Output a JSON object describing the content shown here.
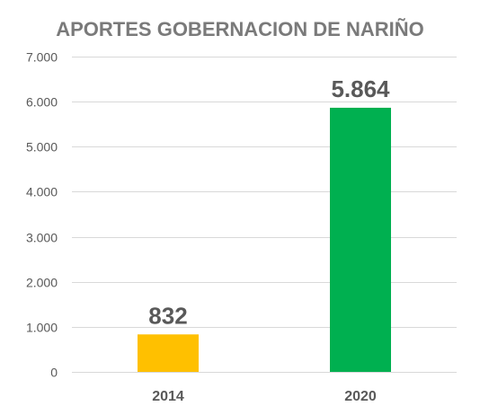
{
  "chart_data": {
    "type": "bar",
    "title": "APORTES GOBERNACION DE NARIÑO",
    "categories": [
      "2014",
      "2020"
    ],
    "values": [
      832,
      5864
    ],
    "data_labels": [
      "832",
      "5.864"
    ],
    "bar_colors": [
      "#ffc000",
      "#00b050"
    ],
    "ylim": [
      0,
      7000
    ],
    "yticks": [
      0,
      1000,
      2000,
      3000,
      4000,
      5000,
      6000,
      7000
    ],
    "ytick_labels": [
      "0",
      "1.000",
      "2.000",
      "3.000",
      "4.000",
      "5.000",
      "6.000",
      "7.000"
    ],
    "grid": true,
    "legend": "none",
    "xlabel": "",
    "ylabel": ""
  }
}
